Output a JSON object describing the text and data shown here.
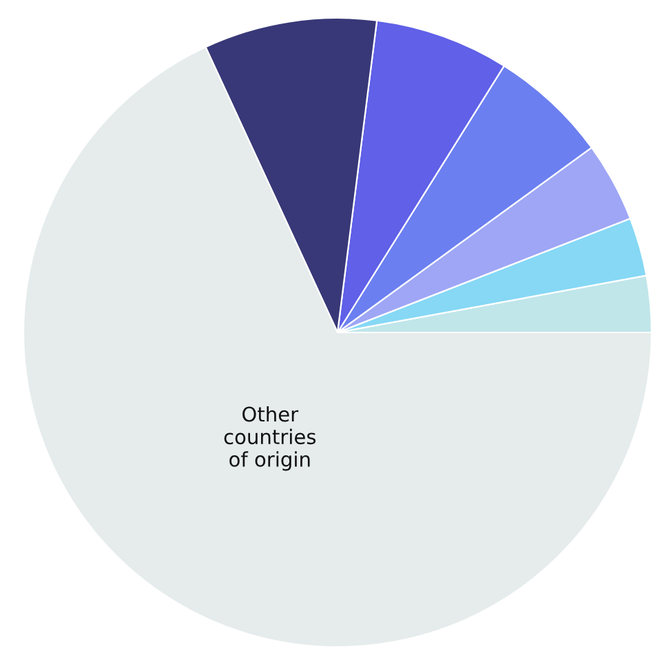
{
  "chart_data": {
    "type": "pie",
    "categories": [
      null,
      null,
      null,
      null,
      null,
      null,
      "Other\ncountries\nof origin"
    ],
    "values": [
      2.9,
      3.0,
      4.1,
      6.1,
      6.9,
      8.9,
      68.1
    ],
    "colors": [
      "#c0e6ea",
      "#86d8f5",
      "#9ea6f5",
      "#6b7ff0",
      "#6060e8",
      "#383878",
      "#e6ecec"
    ]
  }
}
